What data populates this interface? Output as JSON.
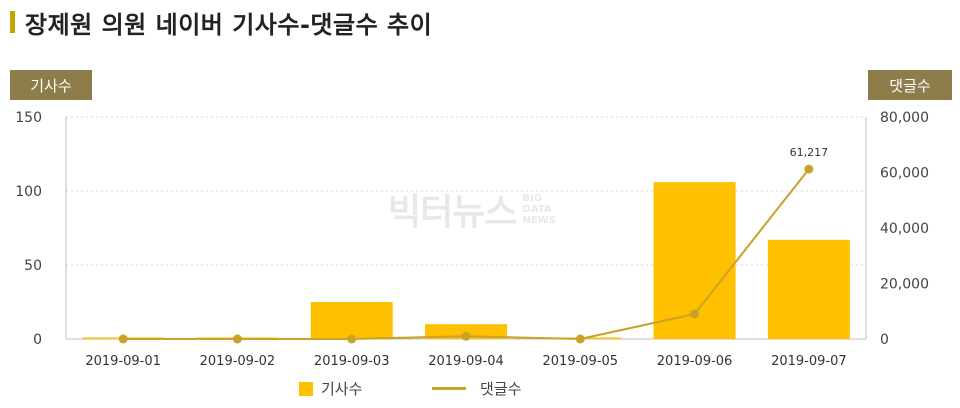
{
  "title": "장제원 의원 네이버 기사수-댓글수 추이",
  "left_axis_tag": "기사수",
  "right_axis_tag": "댓글수",
  "watermark": {
    "main": "빅터뉴스",
    "sub": [
      "BIG",
      "DATA",
      "NEWS"
    ]
  },
  "colors": {
    "bar": "#ffc000",
    "line": "#c9a227",
    "tag": "#8c7d4a",
    "title_bar": "#c8a200"
  },
  "chart_data": {
    "type": "bar",
    "categories": [
      "2019-09-01",
      "2019-09-02",
      "2019-09-03",
      "2019-09-04",
      "2019-09-05",
      "2019-09-06",
      "2019-09-07"
    ],
    "series": [
      {
        "name": "기사수",
        "type": "bar",
        "axis": "left",
        "values": [
          1,
          1,
          25,
          10,
          1,
          106,
          67
        ]
      },
      {
        "name": "댓글수",
        "type": "line",
        "axis": "right",
        "values": [
          0,
          0,
          0,
          1000,
          0,
          9000,
          61217
        ]
      }
    ],
    "annotations": [
      {
        "series": "댓글수",
        "category": "2019-09-07",
        "text": "61,217"
      }
    ],
    "y_left": {
      "ylim": [
        0,
        150
      ],
      "ticks": [
        "0",
        "50",
        "100",
        "150"
      ]
    },
    "y_right": {
      "ylim": [
        0,
        80000
      ],
      "ticks": [
        "0",
        "20,000",
        "40,000",
        "60,000",
        "80,000"
      ]
    },
    "grid": true,
    "legend_position": "bottom"
  }
}
